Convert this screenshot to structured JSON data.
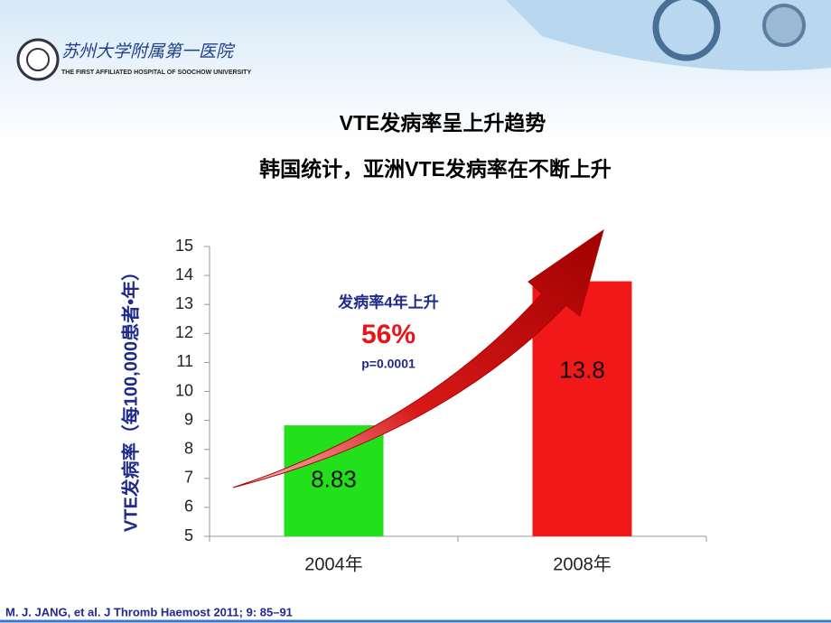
{
  "header": {
    "logo_text": "苏州大学附属第一医院",
    "logo_subtext": "THE FIRST AFFILIATED HOSPITAL OF SOOCHOW UNIVERSITY"
  },
  "slide_title": "VTE发病率呈上升趋势",
  "slide_subtitle": "韩国统计，亚洲VTE发病率在不断上升",
  "chart_data": {
    "type": "bar",
    "y_label": "VTE发病率（每100,000患者•年）",
    "categories": [
      "2004年",
      "2008年"
    ],
    "values": [
      8.83,
      13.8
    ],
    "colors": [
      "#22e01a",
      "#f01818"
    ],
    "ylim": [
      5,
      15
    ],
    "yticks": [
      5,
      6,
      7,
      8,
      9,
      10,
      11,
      12,
      13,
      14,
      15
    ],
    "annotations": [
      "发病率4年上升",
      "56%",
      "p=0.0001"
    ]
  },
  "citation": "M. J. JANG,  et al. J Thromb Haemost 2011; 9: 85–91"
}
